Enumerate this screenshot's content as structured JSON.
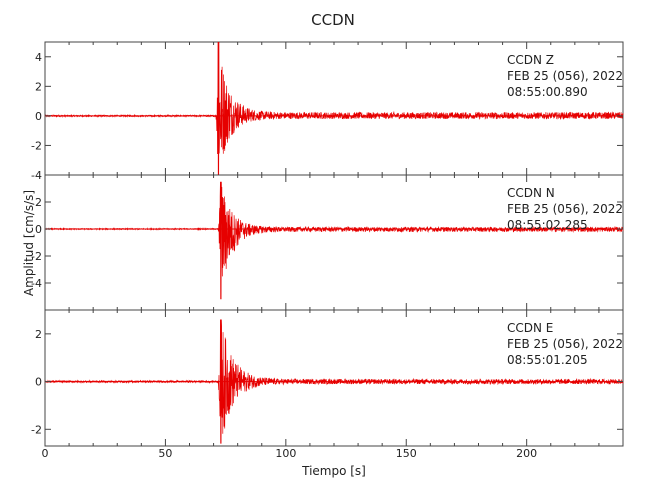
{
  "chart_data": {
    "type": "line",
    "title": "CCDN",
    "xlabel": "Tiempo [s]",
    "ylabel": "Amplitud [cm/s/s]",
    "xlim": [
      0,
      240
    ],
    "x_ticks": [
      0,
      50,
      100,
      150,
      200
    ],
    "series_color": "#e60000",
    "frame_color": "#444444",
    "panels": [
      {
        "station": "CCDN",
        "component": "Z",
        "date": "FEB 25 (056), 2022",
        "time": "08:55:00.890",
        "ylim": [
          -4,
          5
        ],
        "y_ticks": [
          -4,
          -2,
          0,
          2,
          4
        ],
        "y_tick_labels": [
          "-4",
          "-2",
          "0",
          "2",
          "4"
        ],
        "envelope": {
          "onset_s": 71,
          "peak_s": 72,
          "peak_pos": 5.0,
          "peak_neg": -4.0,
          "decay_s": 4.5,
          "noise": 0.05
        }
      },
      {
        "station": "CCDN",
        "component": "N",
        "date": "FEB 25 (056), 2022",
        "time": "08:55:02.285",
        "ylim": [
          -6,
          4
        ],
        "y_ticks": [
          -4,
          -2,
          0,
          2
        ],
        "y_tick_labels": [
          "-4",
          "-2",
          "0",
          "2"
        ],
        "envelope": {
          "onset_s": 72,
          "peak_s": 73,
          "peak_pos": 3.5,
          "peak_neg": -5.2,
          "decay_s": 4.5,
          "noise": 0.04
        }
      },
      {
        "station": "CCDN",
        "component": "E",
        "date": "FEB 25 (056), 2022",
        "time": "08:55:01.205",
        "ylim": [
          -2.7,
          3.0
        ],
        "y_ticks": [
          -2,
          0,
          2
        ],
        "y_tick_labels": [
          "-2",
          "0",
          "2"
        ],
        "envelope": {
          "onset_s": 72,
          "peak_s": 73,
          "peak_pos": 2.6,
          "peak_neg": -2.6,
          "decay_s": 5.0,
          "noise": 0.04
        }
      }
    ]
  }
}
